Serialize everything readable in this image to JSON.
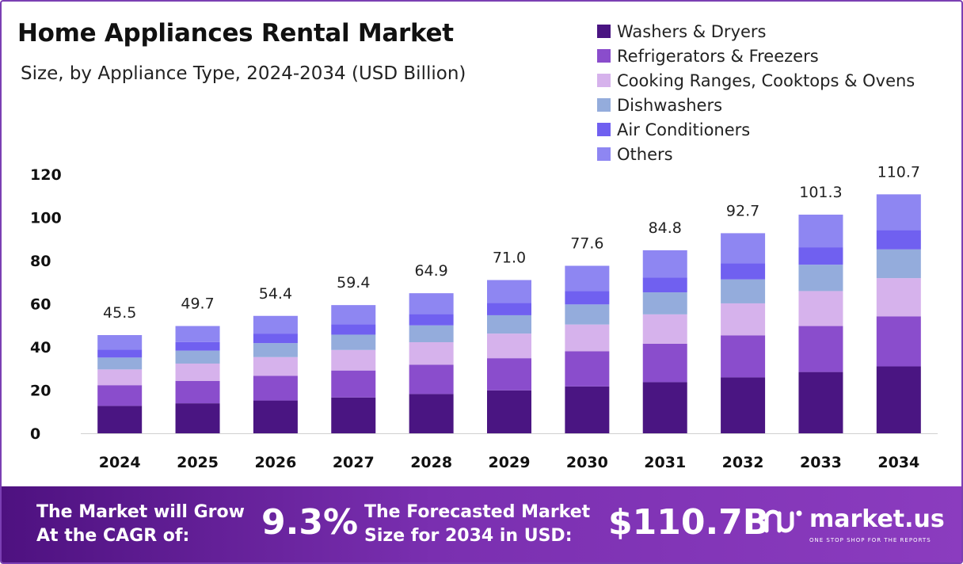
{
  "header": {
    "title": "Home Appliances Rental Market",
    "subtitle": "Size, by Appliance Type, 2024-2034 (USD Billion)"
  },
  "chart_data": {
    "type": "bar",
    "stacked": true,
    "title": "Home Appliances Rental Market",
    "subtitle": "Size, by Appliance Type, 2024-2034 (USD Billion)",
    "xlabel": "",
    "ylabel": "",
    "ylim": [
      0,
      120
    ],
    "yticks": [
      0,
      20,
      40,
      60,
      80,
      100,
      120
    ],
    "grid": false,
    "legend_position": "top-right",
    "categories": [
      "2024",
      "2025",
      "2026",
      "2027",
      "2028",
      "2029",
      "2030",
      "2031",
      "2032",
      "2033",
      "2034"
    ],
    "totals": [
      45.5,
      49.7,
      54.4,
      59.4,
      64.9,
      71.0,
      77.6,
      84.8,
      92.7,
      101.3,
      110.7
    ],
    "total_labels": [
      "45.5",
      "49.7",
      "54.4",
      "59.4",
      "64.9",
      "71.0",
      "77.6",
      "84.8",
      "92.7",
      "101.3",
      "110.7"
    ],
    "series": [
      {
        "name": "Washers & Dryers",
        "color": "#4a1582",
        "values": [
          12.7,
          13.9,
          15.2,
          16.6,
          18.2,
          19.9,
          21.7,
          23.7,
          25.9,
          28.4,
          31.0
        ]
      },
      {
        "name": "Refrigerators & Freezers",
        "color": "#8a4dcc",
        "values": [
          9.6,
          10.4,
          11.4,
          12.5,
          13.6,
          14.9,
          16.3,
          17.8,
          19.5,
          21.3,
          23.2
        ]
      },
      {
        "name": "Cooking Ranges, Cooktops & Ovens",
        "color": "#d6b2ec",
        "values": [
          7.3,
          8.0,
          8.7,
          9.5,
          10.4,
          11.4,
          12.4,
          13.6,
          14.8,
          16.2,
          17.7
        ]
      },
      {
        "name": "Dishwashers",
        "color": "#94acdc",
        "values": [
          5.5,
          6.0,
          6.5,
          7.1,
          7.8,
          8.5,
          9.3,
          10.2,
          11.1,
          12.2,
          13.3
        ]
      },
      {
        "name": "Air Conditioners",
        "color": "#7060f0",
        "values": [
          3.6,
          4.0,
          4.4,
          4.8,
          5.2,
          5.7,
          6.2,
          6.8,
          7.4,
          8.1,
          8.9
        ]
      },
      {
        "name": "Others",
        "color": "#8e86f2",
        "values": [
          6.8,
          7.4,
          8.2,
          8.9,
          9.7,
          10.6,
          11.7,
          12.7,
          14.0,
          15.1,
          16.6
        ]
      }
    ]
  },
  "footer": {
    "cagr_label_line1": "The Market will Grow",
    "cagr_label_line2": "At the CAGR of:",
    "cagr_value": "9.3%",
    "forecast_label_line1": "The Forecasted Market",
    "forecast_label_line2": "Size for 2034 in USD:",
    "forecast_value": "$110.7B",
    "brand_name": "market.us",
    "brand_tagline": "ONE STOP SHOP FOR THE REPORTS"
  },
  "colors": {
    "border": "#7b3fb3",
    "footer_start": "#4e1180",
    "footer_end": "#8b3cbf"
  }
}
